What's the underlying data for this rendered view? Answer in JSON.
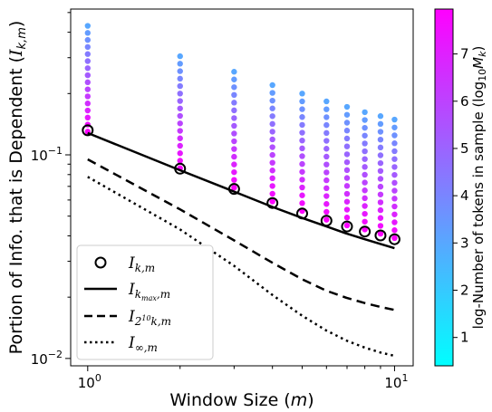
{
  "chart_data": {
    "type": "scatter",
    "xlabel": "Window Size (m)",
    "ylabel": "Portion of Info. that is Dependent (I_{k,m})",
    "xscale": "log",
    "yscale": "log",
    "xlim": [
      0.88,
      11.5
    ],
    "ylim": [
      0.0092,
      0.52
    ],
    "x_ticks": [
      {
        "value": 1,
        "label": "10",
        "exp": "0"
      },
      {
        "value": 10,
        "label": "10",
        "exp": "1"
      }
    ],
    "y_ticks": [
      {
        "value": 0.01,
        "label": "10",
        "exp": "−2"
      },
      {
        "value": 0.1,
        "label": "10",
        "exp": "−1"
      }
    ],
    "colorbar": {
      "label": "log-Number of tokens in sample (log10 Mk)",
      "range": [
        0.4,
        7.95
      ],
      "ticks": [
        "1",
        "2",
        "3",
        "4",
        "5",
        "6",
        "7"
      ],
      "colors": [
        "#00ffff",
        "#ff00ff"
      ]
    },
    "scatter_columns": [
      {
        "m": 1,
        "y_top": 0.43,
        "y_bottom": 0.13
      },
      {
        "m": 2,
        "y_top": 0.305,
        "y_bottom": 0.086
      },
      {
        "m": 3,
        "y_top": 0.256,
        "y_bottom": 0.069
      },
      {
        "m": 4,
        "y_top": 0.22,
        "y_bottom": 0.059
      },
      {
        "m": 5,
        "y_top": 0.2,
        "y_bottom": 0.053
      },
      {
        "m": 6,
        "y_top": 0.183,
        "y_bottom": 0.048
      },
      {
        "m": 7,
        "y_top": 0.172,
        "y_bottom": 0.045
      },
      {
        "m": 8,
        "y_top": 0.162,
        "y_bottom": 0.043
      },
      {
        "m": 9,
        "y_top": 0.155,
        "y_bottom": 0.041
      },
      {
        "m": 10,
        "y_top": 0.149,
        "y_bottom": 0.039
      }
    ],
    "series": [
      {
        "name": "I_{k,m}",
        "style": "open-circle",
        "x": [
          1,
          2,
          3,
          4,
          5,
          6,
          7,
          8,
          9,
          10
        ],
        "values": [
          0.132,
          0.0855,
          0.068,
          0.058,
          0.0515,
          0.0475,
          0.0445,
          0.042,
          0.0402,
          0.0385
        ]
      },
      {
        "name": "I_{k_max,m}",
        "style": "solid",
        "x": [
          1,
          2,
          3,
          4,
          5,
          6,
          7,
          8,
          9,
          10
        ],
        "values": [
          0.128,
          0.084,
          0.066,
          0.0555,
          0.049,
          0.0445,
          0.041,
          0.0385,
          0.0365,
          0.0348
        ]
      },
      {
        "name": "I_{2^10 k,m}",
        "style": "dashed",
        "x": [
          1,
          2,
          3,
          4,
          5,
          6,
          7,
          8,
          9,
          10
        ],
        "values": [
          0.095,
          0.054,
          0.038,
          0.0295,
          0.0245,
          0.0215,
          0.0198,
          0.0187,
          0.0179,
          0.0173
        ]
      },
      {
        "name": "I_{∞,m}",
        "style": "dotted",
        "x": [
          1,
          2,
          3,
          4,
          5,
          6,
          7,
          8,
          9,
          10
        ],
        "values": [
          0.078,
          0.043,
          0.0285,
          0.0205,
          0.0162,
          0.0137,
          0.0122,
          0.0113,
          0.0107,
          0.0103
        ]
      }
    ],
    "legend": {
      "position": "lower-left",
      "entries": [
        {
          "symbol": "I",
          "sub": "k,m"
        },
        {
          "symbol": "I",
          "sub": "k",
          "subsub": "max",
          "tail": ",m"
        },
        {
          "symbol": "I",
          "sub": "2",
          "sup": "10",
          "tail": "k,m"
        },
        {
          "symbol": "I",
          "sub": "∞,m"
        }
      ]
    },
    "grid": false
  }
}
